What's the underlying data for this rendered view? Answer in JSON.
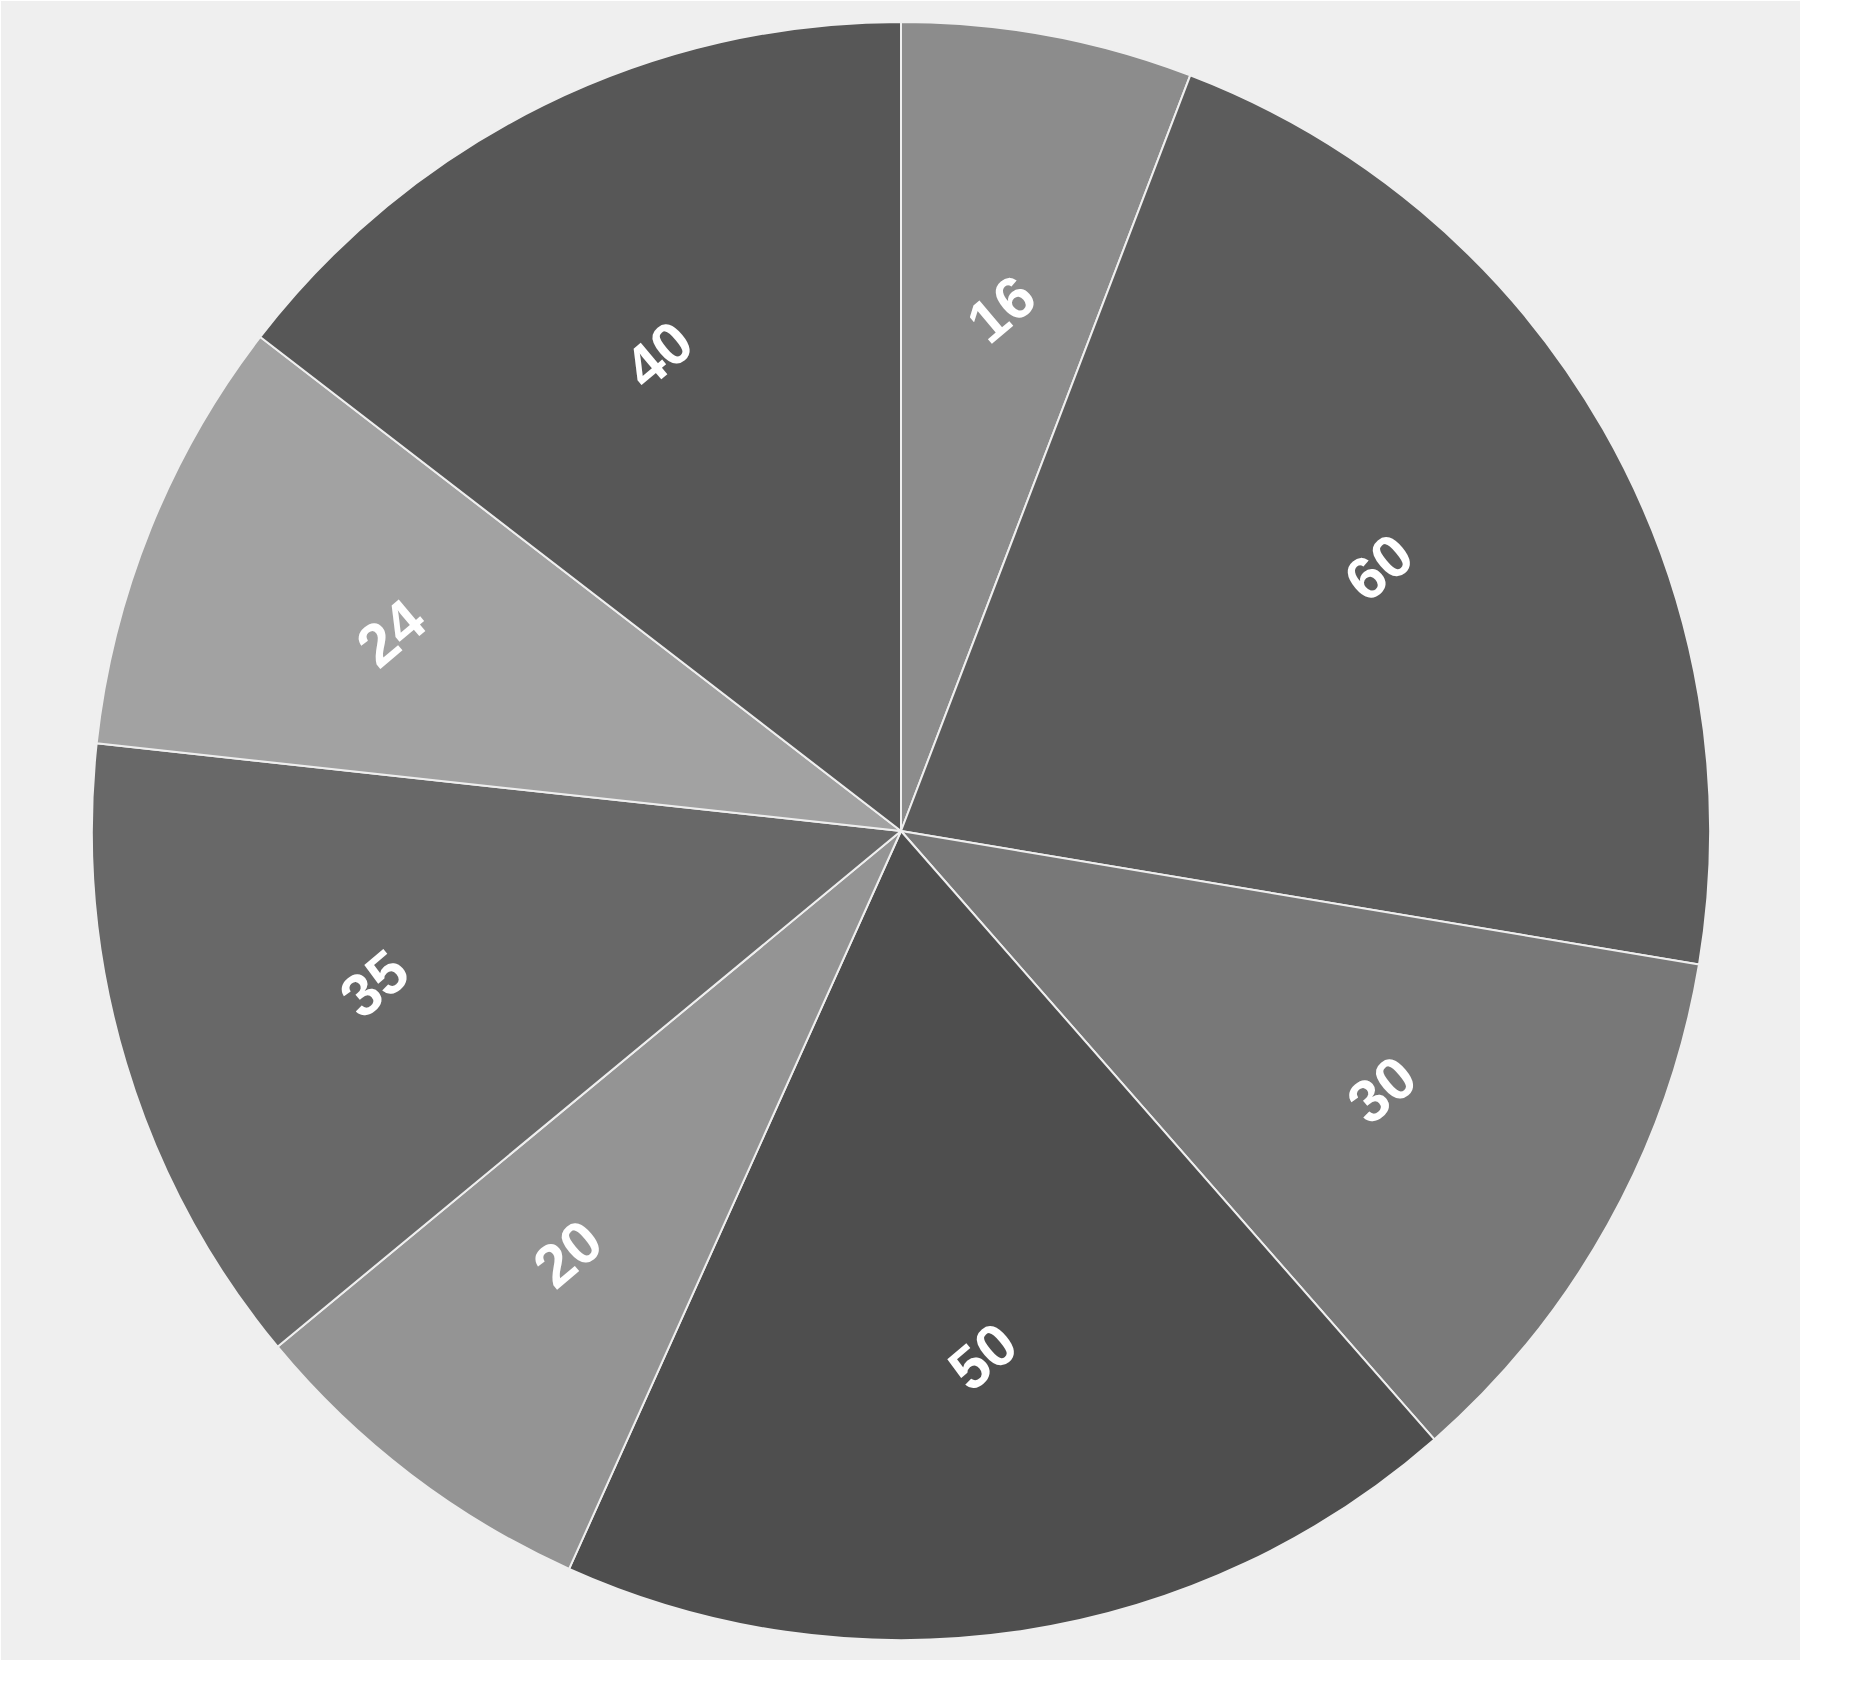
{
  "chart_data": {
    "type": "pie",
    "values": [
      16,
      60,
      30,
      50,
      20,
      35,
      24,
      40
    ],
    "colors": [
      "#8c8c8c",
      "#5c5c5c",
      "#787878",
      "#4e4e4e",
      "#949494",
      "#686868",
      "#a2a2a2",
      "#575757"
    ],
    "data_labels": true
  }
}
